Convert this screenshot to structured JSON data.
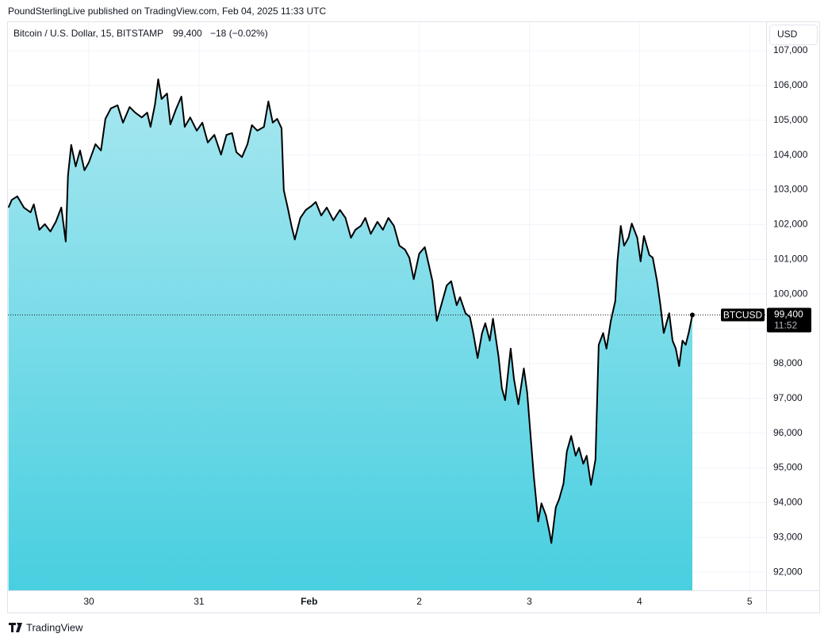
{
  "chart_data": {
    "type": "area",
    "header": "PoundSterlingLive published on TradingView.com, Feb 04, 2025 11:33 UTC",
    "symbol": "Bitcoin / U.S. Dollar, 15, BITSTAMP",
    "last_price_label": "99,400",
    "change_label": "−18 (−0.02%)",
    "currency": "USD",
    "countdown": "11:52",
    "brand": "TradingView",
    "grid": true,
    "xlim": [
      29.265,
      36.15
    ],
    "xticks": [
      {
        "value": 30,
        "label": "30"
      },
      {
        "value": 31,
        "label": "31"
      },
      {
        "value": 32,
        "label": "Feb"
      },
      {
        "value": 33,
        "label": "2"
      },
      {
        "value": 34,
        "label": "3"
      },
      {
        "value": 35,
        "label": "4"
      },
      {
        "value": 36,
        "label": "5"
      }
    ],
    "ylim": [
      91480,
      107820
    ],
    "yticks": [
      {
        "value": 92000,
        "label": "92,000"
      },
      {
        "value": 93000,
        "label": "93,000"
      },
      {
        "value": 94000,
        "label": "94,000"
      },
      {
        "value": 95000,
        "label": "95,000"
      },
      {
        "value": 96000,
        "label": "96,000"
      },
      {
        "value": 97000,
        "label": "97,000"
      },
      {
        "value": 98000,
        "label": "98,000"
      },
      {
        "value": 99000,
        "label": "99,000"
      },
      {
        "value": 100000,
        "label": "100,000"
      },
      {
        "value": 101000,
        "label": "101,000"
      },
      {
        "value": 102000,
        "label": "102,000"
      },
      {
        "value": 103000,
        "label": "103,000"
      },
      {
        "value": 104000,
        "label": "104,000"
      },
      {
        "value": 105000,
        "label": "105,000"
      },
      {
        "value": 106000,
        "label": "106,000"
      },
      {
        "value": 107000,
        "label": "107,000"
      }
    ],
    "x": [
      29.27,
      29.3,
      29.35,
      29.41,
      29.47,
      29.5,
      29.55,
      29.6,
      29.65,
      29.7,
      29.75,
      29.79,
      29.81,
      29.84,
      29.88,
      29.92,
      29.96,
      30.0,
      30.06,
      30.11,
      30.15,
      30.2,
      30.26,
      30.31,
      30.37,
      30.42,
      30.48,
      30.53,
      30.56,
      30.6,
      30.63,
      30.66,
      30.71,
      30.74,
      30.79,
      30.84,
      30.87,
      30.92,
      30.98,
      31.03,
      31.08,
      31.14,
      31.2,
      31.25,
      31.3,
      31.34,
      31.39,
      31.44,
      31.48,
      31.53,
      31.59,
      31.63,
      31.67,
      31.71,
      31.75,
      31.77,
      31.81,
      31.84,
      31.87,
      31.92,
      31.97,
      32.02,
      32.06,
      32.11,
      32.16,
      32.22,
      32.28,
      32.33,
      32.38,
      32.42,
      32.47,
      32.51,
      32.56,
      32.62,
      32.67,
      32.72,
      32.77,
      32.82,
      32.87,
      32.91,
      32.95,
      33.0,
      33.05,
      33.08,
      33.12,
      33.16,
      33.21,
      33.25,
      33.29,
      33.34,
      33.37,
      33.42,
      33.46,
      33.49,
      33.53,
      33.57,
      33.6,
      33.64,
      33.67,
      33.72,
      33.75,
      33.78,
      33.83,
      33.86,
      33.9,
      33.95,
      33.98,
      34.02,
      34.04,
      34.08,
      34.11,
      34.15,
      34.18,
      34.2,
      34.24,
      34.27,
      34.31,
      34.34,
      34.38,
      34.42,
      34.45,
      34.49,
      34.52,
      34.56,
      34.6,
      34.63,
      34.67,
      34.7,
      34.74,
      34.78,
      34.8,
      34.83,
      34.86,
      34.9,
      34.93,
      34.98,
      35.01,
      35.04,
      35.09,
      35.12,
      35.16,
      35.19,
      35.22,
      35.27,
      35.3,
      35.33,
      35.36,
      35.39,
      35.42,
      35.45,
      35.48
    ],
    "series": [
      {
        "name": "BTCUSD",
        "color": "#000000",
        "fill_top": "#a8e7f0",
        "fill_bottom": "#48cfe0",
        "values": [
          102490,
          102710,
          102810,
          102490,
          102350,
          102580,
          101850,
          102010,
          101800,
          102080,
          102490,
          101510,
          103400,
          104290,
          103670,
          104130,
          103560,
          103790,
          104310,
          104130,
          105040,
          105340,
          105430,
          104930,
          105380,
          105220,
          105080,
          105220,
          104810,
          105450,
          106180,
          105610,
          105770,
          104880,
          105310,
          105680,
          104810,
          105080,
          104700,
          104930,
          104360,
          104580,
          104010,
          104580,
          104630,
          104080,
          103940,
          104310,
          104860,
          104700,
          104810,
          105540,
          104930,
          105040,
          104770,
          102990,
          102420,
          101960,
          101570,
          102190,
          102420,
          102530,
          102650,
          102260,
          102490,
          102120,
          102420,
          102190,
          101620,
          101850,
          101960,
          102190,
          101730,
          102080,
          101850,
          102190,
          101960,
          101390,
          101280,
          101050,
          100430,
          101160,
          101350,
          100940,
          100370,
          99230,
          99800,
          100250,
          100370,
          99680,
          99910,
          99450,
          99340,
          98880,
          98160,
          98880,
          99160,
          98660,
          99290,
          98200,
          97290,
          96950,
          98430,
          97560,
          96830,
          97860,
          97170,
          95580,
          94780,
          93460,
          93980,
          93640,
          93190,
          92840,
          93870,
          94100,
          94550,
          95470,
          95920,
          95350,
          95580,
          95120,
          95350,
          94510,
          95240,
          98540,
          98880,
          98430,
          99230,
          99800,
          100940,
          101960,
          101390,
          101620,
          102030,
          101620,
          100940,
          101670,
          101120,
          101050,
          100370,
          99680,
          98880,
          99450,
          98660,
          98430,
          97930,
          98660,
          98540,
          98930,
          99400
        ]
      }
    ]
  }
}
